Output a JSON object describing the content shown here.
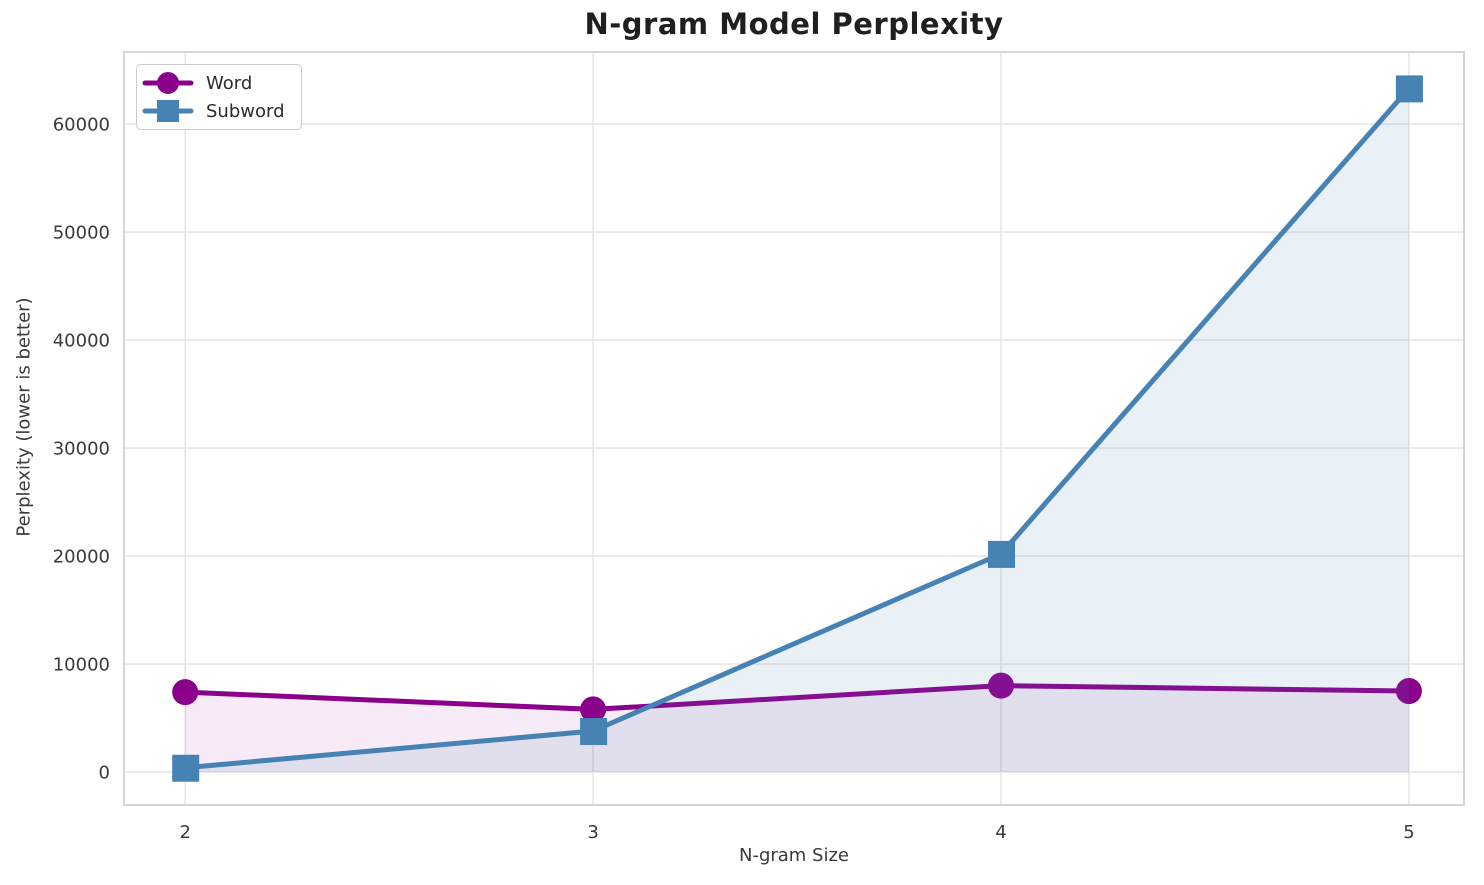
{
  "chart_data": {
    "type": "line",
    "title": "N-gram Model Perplexity",
    "xlabel": "N-gram Size",
    "ylabel": "Perplexity (lower is better)",
    "x": [
      2,
      3,
      4,
      5
    ],
    "series": [
      {
        "name": "Word",
        "color": "#8B008B",
        "marker": "circle",
        "fill_alpha": 0.08,
        "values": [
          7400,
          5800,
          8000,
          7500
        ]
      },
      {
        "name": "Subword",
        "color": "#4682B4",
        "marker": "square",
        "fill_alpha": 0.12,
        "values": [
          400,
          3800,
          20200,
          63300
        ]
      }
    ],
    "xticks": [
      2,
      3,
      4,
      5
    ],
    "yticks": [
      0,
      10000,
      20000,
      30000,
      40000,
      50000,
      60000
    ],
    "xlim": [
      1.85,
      5.135
    ],
    "ylim": [
      -3050,
      66670
    ],
    "grid": true,
    "legend_position": "upper-left",
    "fill_to_zero": true
  },
  "style": {
    "background": "#FFFFFF",
    "grid_color": "#E7E7E7",
    "spine_color": "#D5D5D5",
    "tick_text_color": "#3A3A3A",
    "title_color": "#1F1F1F",
    "line_width": 5,
    "marker_size": 13
  }
}
